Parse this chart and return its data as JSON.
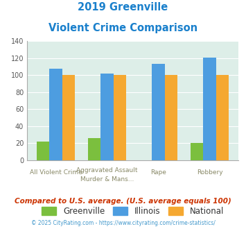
{
  "title_line1": "2019 Greenville",
  "title_line2": "Violent Crime Comparison",
  "cat_labels_top": [
    "",
    "Aggravated Assault",
    "",
    ""
  ],
  "cat_labels_bottom": [
    "All Violent Crime",
    "Murder & Mans...",
    "Rape",
    "Robbery"
  ],
  "greenville": [
    22,
    26,
    0,
    20
  ],
  "illinois": [
    108,
    102,
    113,
    121
  ],
  "national": [
    100,
    100,
    100,
    100
  ],
  "greenville_color": "#7bbf3e",
  "illinois_color": "#4d9de0",
  "national_color": "#f5a831",
  "bg_color": "#ddeee8",
  "ylim": [
    0,
    140
  ],
  "yticks": [
    0,
    20,
    40,
    60,
    80,
    100,
    120,
    140
  ],
  "footnote1": "Compared to U.S. average. (U.S. average equals 100)",
  "footnote2": "© 2025 CityRating.com - https://www.cityrating.com/crime-statistics/",
  "title_color": "#1a80cc",
  "footnote1_color": "#cc3300",
  "footnote2_color": "#4499cc",
  "legend_labels": [
    "Greenville",
    "Illinois",
    "National"
  ],
  "bar_width": 0.25
}
